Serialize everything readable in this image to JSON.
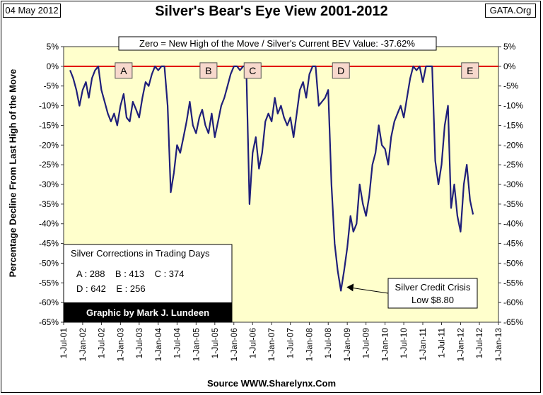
{
  "header": {
    "date": "04 May 2012",
    "source_tag": "GATA.Org",
    "footer": "Source WWW.Sharelynx.Com"
  },
  "chart_data": {
    "type": "line",
    "title": "Silver's Bear's Eye View 2001-2012",
    "subtitle": "Zero = New High of the Move / Silver's Current BEV Value: -37.62%",
    "xlabel": "",
    "ylabel": "Percentage Decline From Last High of the Move",
    "ylim": [
      -65,
      5
    ],
    "ytick_step": 5,
    "ytick_labels": [
      "5%",
      "0%",
      "-5%",
      "-10%",
      "-15%",
      "-20%",
      "-25%",
      "-30%",
      "-35%",
      "-40%",
      "-45%",
      "-50%",
      "-55%",
      "-60%",
      "-65%"
    ],
    "x_start": "2001-07-01",
    "x_end": "2013-01-01",
    "xtick_labels": [
      "1-Jul-01",
      "1-Jan-02",
      "1-Jul-02",
      "1-Jan-03",
      "1-Jul-03",
      "1-Jan-04",
      "1-Jul-04",
      "1-Jan-05",
      "1-Jul-05",
      "1-Jan-06",
      "1-Jul-06",
      "1-Jan-07",
      "1-Jul-07",
      "1-Jan-08",
      "1-Jul-08",
      "1-Jan-09",
      "1-Jul-09",
      "1-Jan-10",
      "1-Jul-10",
      "1-Jan-11",
      "1-Jul-11",
      "1-Jan-12",
      "1-Jul-12",
      "1-Jan-13"
    ],
    "grid": false,
    "line_color": "#1f1f7a",
    "zero_line_color": "#e00000",
    "plot_background": "#ffffcc",
    "series": [
      {
        "points": [
          [
            "2001-09-01",
            -1
          ],
          [
            "2001-10-01",
            -3
          ],
          [
            "2001-11-01",
            -6
          ],
          [
            "2001-12-01",
            -10
          ],
          [
            "2002-01-01",
            -6
          ],
          [
            "2002-02-01",
            -4
          ],
          [
            "2002-03-01",
            -8
          ],
          [
            "2002-04-01",
            -3
          ],
          [
            "2002-05-01",
            -1
          ],
          [
            "2002-06-01",
            0
          ],
          [
            "2002-07-01",
            -6
          ],
          [
            "2002-08-01",
            -9
          ],
          [
            "2002-09-01",
            -12
          ],
          [
            "2002-10-01",
            -14
          ],
          [
            "2002-11-01",
            -12
          ],
          [
            "2002-12-01",
            -15
          ],
          [
            "2003-01-01",
            -10
          ],
          [
            "2003-02-01",
            -7
          ],
          [
            "2003-03-01",
            -13
          ],
          [
            "2003-04-01",
            -14
          ],
          [
            "2003-05-01",
            -9
          ],
          [
            "2003-06-01",
            -11
          ],
          [
            "2003-07-01",
            -13
          ],
          [
            "2003-08-01",
            -8
          ],
          [
            "2003-09-01",
            -4
          ],
          [
            "2003-10-01",
            -5
          ],
          [
            "2003-11-01",
            -2
          ],
          [
            "2003-12-01",
            0
          ],
          [
            "2004-01-01",
            -1
          ],
          [
            "2004-02-01",
            0
          ],
          [
            "2004-03-01",
            0
          ],
          [
            "2004-04-01",
            -10
          ],
          [
            "2004-05-01",
            -32
          ],
          [
            "2004-06-01",
            -27
          ],
          [
            "2004-07-01",
            -20
          ],
          [
            "2004-08-01",
            -22
          ],
          [
            "2004-09-01",
            -18
          ],
          [
            "2004-10-01",
            -14
          ],
          [
            "2004-11-01",
            -9
          ],
          [
            "2004-12-01",
            -15
          ],
          [
            "2005-01-01",
            -17
          ],
          [
            "2005-02-01",
            -13
          ],
          [
            "2005-03-01",
            -11
          ],
          [
            "2005-04-01",
            -15
          ],
          [
            "2005-05-01",
            -17
          ],
          [
            "2005-06-01",
            -12
          ],
          [
            "2005-07-01",
            -18
          ],
          [
            "2005-08-01",
            -14
          ],
          [
            "2005-09-01",
            -10
          ],
          [
            "2005-10-01",
            -8
          ],
          [
            "2005-11-01",
            -5
          ],
          [
            "2005-12-01",
            -2
          ],
          [
            "2006-01-01",
            0
          ],
          [
            "2006-02-01",
            0
          ],
          [
            "2006-03-01",
            -1
          ],
          [
            "2006-04-01",
            0
          ],
          [
            "2006-05-01",
            0
          ],
          [
            "2006-06-01",
            -35
          ],
          [
            "2006-07-01",
            -22
          ],
          [
            "2006-08-01",
            -18
          ],
          [
            "2006-09-01",
            -26
          ],
          [
            "2006-10-01",
            -22
          ],
          [
            "2006-11-01",
            -14
          ],
          [
            "2006-12-01",
            -12
          ],
          [
            "2007-01-01",
            -14
          ],
          [
            "2007-02-01",
            -8
          ],
          [
            "2007-03-01",
            -12
          ],
          [
            "2007-04-01",
            -10
          ],
          [
            "2007-05-01",
            -13
          ],
          [
            "2007-06-01",
            -15
          ],
          [
            "2007-07-01",
            -13
          ],
          [
            "2007-08-01",
            -18
          ],
          [
            "2007-09-01",
            -12
          ],
          [
            "2007-10-01",
            -6
          ],
          [
            "2007-11-01",
            -4
          ],
          [
            "2007-12-01",
            -8
          ],
          [
            "2008-01-01",
            -2
          ],
          [
            "2008-02-01",
            0
          ],
          [
            "2008-03-01",
            0
          ],
          [
            "2008-04-01",
            -10
          ],
          [
            "2008-05-01",
            -9
          ],
          [
            "2008-06-01",
            -8
          ],
          [
            "2008-07-01",
            -6
          ],
          [
            "2008-08-01",
            -30
          ],
          [
            "2008-09-01",
            -45
          ],
          [
            "2008-10-01",
            -52
          ],
          [
            "2008-11-01",
            -57
          ],
          [
            "2008-12-01",
            -52
          ],
          [
            "2009-01-01",
            -46
          ],
          [
            "2009-02-01",
            -38
          ],
          [
            "2009-03-01",
            -42
          ],
          [
            "2009-04-01",
            -40
          ],
          [
            "2009-05-01",
            -30
          ],
          [
            "2009-06-01",
            -35
          ],
          [
            "2009-07-01",
            -38
          ],
          [
            "2009-08-01",
            -33
          ],
          [
            "2009-09-01",
            -25
          ],
          [
            "2009-10-01",
            -22
          ],
          [
            "2009-11-01",
            -15
          ],
          [
            "2009-12-01",
            -20
          ],
          [
            "2010-01-01",
            -21
          ],
          [
            "2010-02-01",
            -25
          ],
          [
            "2010-03-01",
            -18
          ],
          [
            "2010-04-01",
            -14
          ],
          [
            "2010-05-01",
            -12
          ],
          [
            "2010-06-01",
            -10
          ],
          [
            "2010-07-01",
            -13
          ],
          [
            "2010-08-01",
            -8
          ],
          [
            "2010-09-01",
            -3
          ],
          [
            "2010-10-01",
            0
          ],
          [
            "2010-11-01",
            -1
          ],
          [
            "2010-12-01",
            0
          ],
          [
            "2011-01-01",
            -4
          ],
          [
            "2011-02-01",
            0
          ],
          [
            "2011-03-01",
            0
          ],
          [
            "2011-04-01",
            0
          ],
          [
            "2011-05-01",
            -24
          ],
          [
            "2011-06-01",
            -30
          ],
          [
            "2011-07-01",
            -25
          ],
          [
            "2011-08-01",
            -15
          ],
          [
            "2011-09-01",
            -10
          ],
          [
            "2011-10-01",
            -36
          ],
          [
            "2011-11-01",
            -30
          ],
          [
            "2011-12-01",
            -38
          ],
          [
            "2012-01-01",
            -42
          ],
          [
            "2012-02-01",
            -30
          ],
          [
            "2012-03-01",
            -25
          ],
          [
            "2012-04-01",
            -34
          ],
          [
            "2012-05-01",
            -37.62
          ]
        ]
      }
    ],
    "markers": [
      {
        "label": "A",
        "x": "2003-02-01",
        "y": 0
      },
      {
        "label": "B",
        "x": "2005-05-01",
        "y": 0
      },
      {
        "label": "C",
        "x": "2006-07-01",
        "y": 0
      },
      {
        "label": "D",
        "x": "2008-11-01",
        "y": 0
      },
      {
        "label": "E",
        "x": "2012-04-01",
        "y": 0
      }
    ],
    "annotation": {
      "lines": [
        "Silver Credit Crisis",
        "Low $8.80"
      ],
      "x": "2008-11-01",
      "y": -57
    },
    "info_box": {
      "title": "Silver Corrections in Trading Days",
      "row1": "A : 288    B : 413    C : 374",
      "row2": "D : 642    E : 256",
      "credit": "Graphic by Mark J. Lundeen"
    }
  }
}
